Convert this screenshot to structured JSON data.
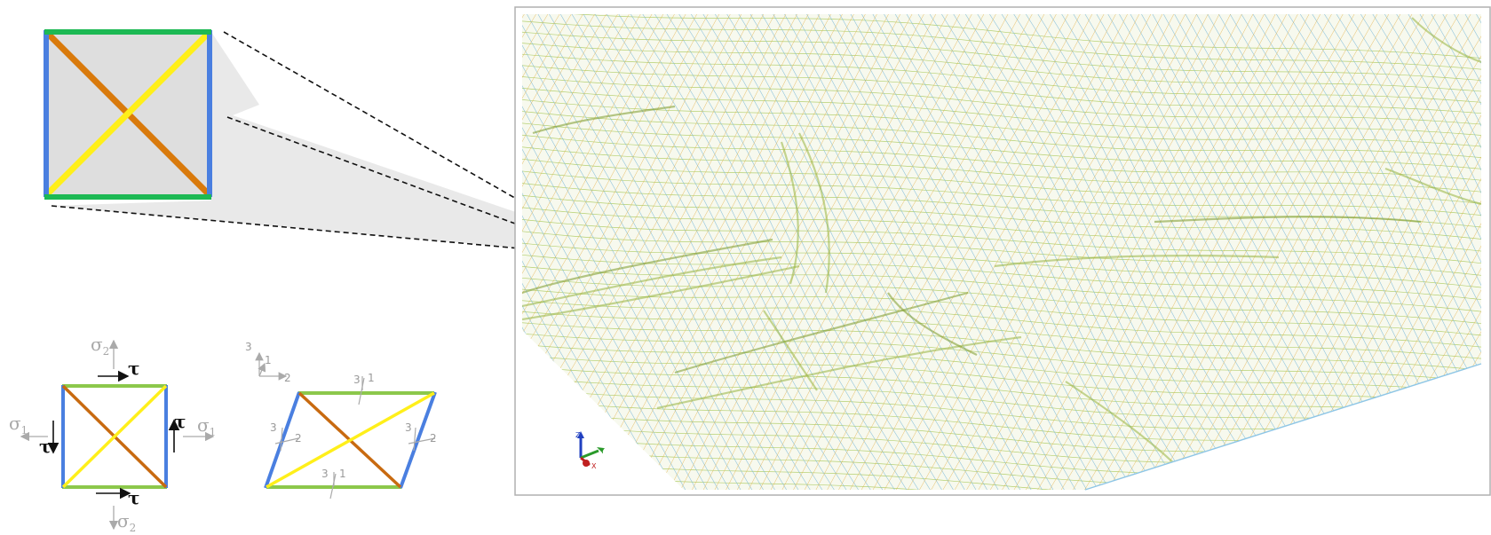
{
  "colors": {
    "edge_horizontal": "#1db954",
    "edge_vertical": "#4a7fe0",
    "diagonal_a": "#d97a0c",
    "diagonal_b": "#ffef1a",
    "cell_fill": "#dedede",
    "mesh_line_a": "#a9c95a",
    "mesh_line_b": "#7ab8d8",
    "mesh_line_c": "#e3b24a",
    "callout_fill": "#e8e8e8",
    "panel_border": "#b0b0b0"
  },
  "stress_labels": {
    "sigma1": "σ",
    "sigma1_sub": "1",
    "sigma2": "σ",
    "sigma2_sub": "2",
    "tau": "τ"
  },
  "axis_labels": {
    "a3": "3",
    "a2": "2",
    "a1": "1"
  },
  "triad_labels": {
    "z": "Z",
    "y": "Y",
    "x": "X"
  }
}
